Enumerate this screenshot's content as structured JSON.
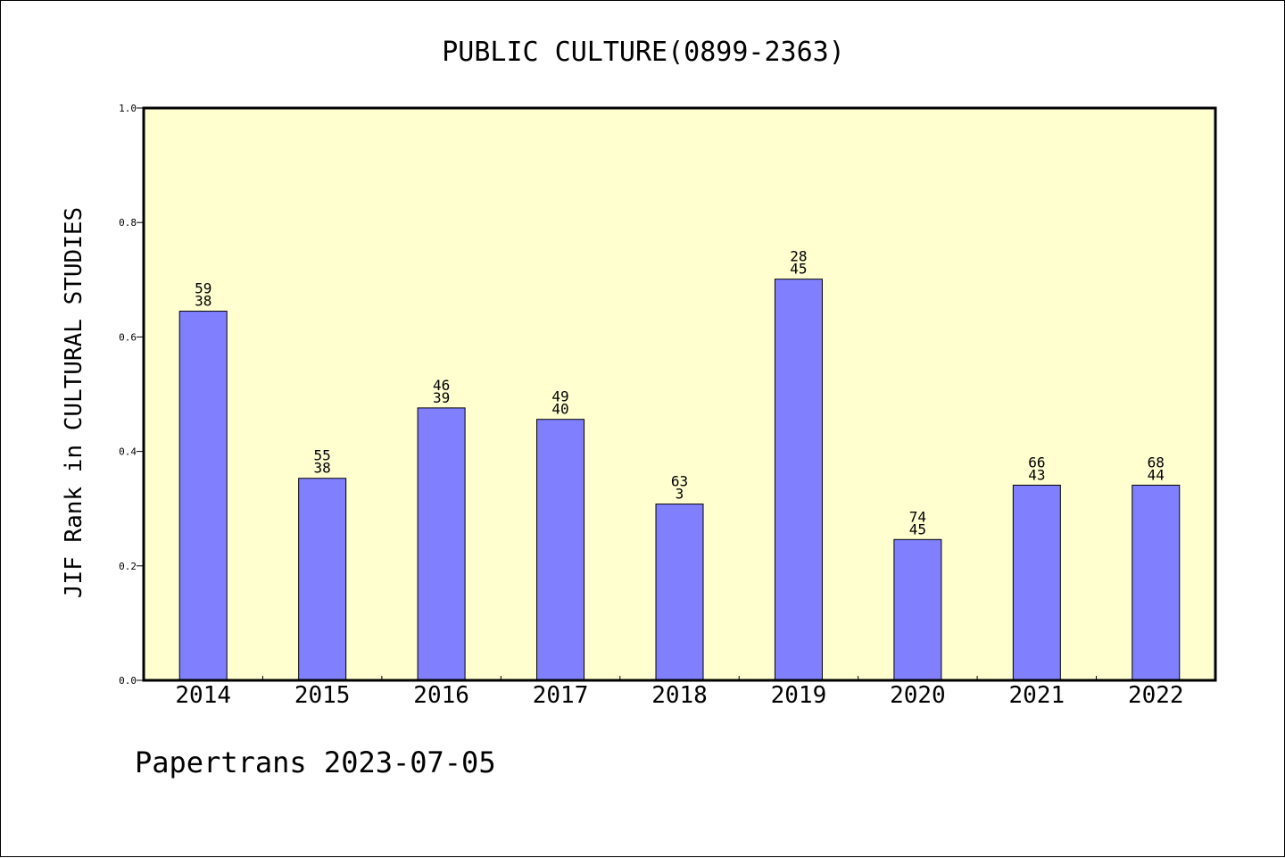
{
  "chart_data": {
    "type": "bar",
    "title": "PUBLIC CULTURE(0899-2363)",
    "xlabel": "",
    "ylabel": "JIF Rank in CULTURAL STUDIES",
    "ylim": [
      0.0,
      1.0
    ],
    "yticks": [
      "0.0",
      "0.2",
      "0.4",
      "0.6",
      "0.8",
      "1.0"
    ],
    "categories": [
      "2014",
      "2015",
      "2016",
      "2017",
      "2018",
      "2019",
      "2020",
      "2021",
      "2022"
    ],
    "values": [
      0.645,
      0.353,
      0.476,
      0.456,
      0.308,
      0.701,
      0.246,
      0.341,
      0.341
    ],
    "labels_top": [
      "59",
      "55",
      "46",
      "49",
      "63",
      "28",
      "74",
      "66",
      "68"
    ],
    "labels_bottom": [
      "38",
      "38",
      "39",
      "40",
      "3",
      "45",
      "45",
      "43",
      "44"
    ],
    "grid": false,
    "colors": {
      "plot_background": "#ffffd0",
      "bar_fill": "#8080ff",
      "bar_stroke": "#000000"
    }
  },
  "footer": {
    "text": "Papertrans 2023-07-05"
  }
}
